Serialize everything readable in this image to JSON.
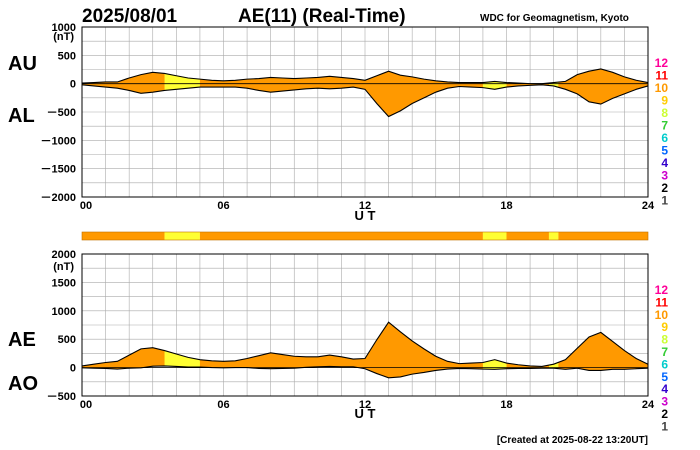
{
  "header": {
    "date": "2025/08/01",
    "title": "AE(11) (Real-Time)",
    "source": "WDC for Geomagnetism, Kyoto"
  },
  "footer": {
    "created": "[Created at 2025-08-22 13:20UT]"
  },
  "colors": {
    "fill_orange": "#ff9900",
    "fill_yellow": "#ffff33",
    "grid": "#aaaaaa",
    "line": "#000000",
    "scale": [
      "#999999",
      "#444444",
      "#000000",
      "#cc00cc",
      "#3300cc",
      "#0066ff",
      "#00cccc",
      "#33cc33",
      "#ccff33",
      "#ffcc00",
      "#ff9900",
      "#ff0000",
      "#ff0099"
    ]
  },
  "stations_scale": [
    "12",
    "11",
    "10",
    "9",
    "8",
    "7",
    "6",
    "5",
    "4",
    "3",
    "2",
    "1"
  ],
  "chart_data": [
    {
      "type": "area",
      "panel": "AU/AL",
      "series_labels": [
        "AU",
        "AL"
      ],
      "y_unit": "(nT)",
      "ylim": [
        -2000,
        1000
      ],
      "yticks": [
        1000,
        500,
        0,
        -500,
        -1000,
        -1500,
        -2000
      ],
      "ytick_labels": [
        "1000",
        "500",
        "0",
        "－500",
        "－1000",
        "－1500",
        "－2000"
      ],
      "xlim": [
        0,
        24
      ],
      "xticks": [
        0,
        6,
        12,
        18,
        24
      ],
      "xtick_labels": [
        "00",
        "06",
        "12",
        "18",
        "24"
      ],
      "xlabel": "U T",
      "x_hours": [
        0,
        0.5,
        1,
        1.5,
        2,
        2.5,
        3,
        3.5,
        4,
        4.5,
        5,
        5.5,
        6,
        6.5,
        7,
        7.5,
        8,
        8.5,
        9,
        9.5,
        10,
        10.5,
        11,
        11.5,
        12,
        12.5,
        13,
        13.5,
        14,
        14.5,
        15,
        15.5,
        16,
        16.5,
        17,
        17.5,
        18,
        18.5,
        19,
        19.5,
        20,
        20.5,
        21,
        21.5,
        22,
        22.5,
        23,
        23.5,
        24
      ],
      "series": [
        {
          "name": "AU",
          "values": [
            10,
            20,
            30,
            30,
            100,
            160,
            200,
            180,
            140,
            100,
            80,
            60,
            50,
            60,
            80,
            90,
            110,
            100,
            90,
            100,
            110,
            130,
            110,
            90,
            60,
            140,
            220,
            150,
            120,
            80,
            50,
            30,
            20,
            20,
            20,
            40,
            20,
            10,
            0,
            0,
            20,
            40,
            160,
            220,
            260,
            200,
            120,
            60,
            20
          ]
        },
        {
          "name": "AL",
          "values": [
            -20,
            -40,
            -60,
            -80,
            -120,
            -170,
            -150,
            -120,
            -100,
            -80,
            -60,
            -60,
            -60,
            -60,
            -80,
            -120,
            -150,
            -130,
            -110,
            -90,
            -80,
            -90,
            -80,
            -60,
            -100,
            -350,
            -580,
            -480,
            -350,
            -250,
            -150,
            -80,
            -50,
            -60,
            -70,
            -100,
            -60,
            -40,
            -30,
            -20,
            -40,
            -100,
            -180,
            -320,
            -360,
            -260,
            -180,
            -100,
            -40
          ]
        }
      ]
    },
    {
      "type": "area",
      "panel": "AE/AO",
      "series_labels": [
        "AE",
        "AO"
      ],
      "y_unit": "(nT)",
      "ylim": [
        -500,
        2000
      ],
      "yticks": [
        2000,
        1500,
        1000,
        500,
        0,
        -500
      ],
      "ytick_labels": [
        "2000",
        "1500",
        "1000",
        "500",
        "0",
        "－500"
      ],
      "xlim": [
        0,
        24
      ],
      "xticks": [
        0,
        6,
        12,
        18,
        24
      ],
      "xtick_labels": [
        "00",
        "06",
        "12",
        "18",
        "24"
      ],
      "xlabel": "U T",
      "x_hours": [
        0,
        0.5,
        1,
        1.5,
        2,
        2.5,
        3,
        3.5,
        4,
        4.5,
        5,
        5.5,
        6,
        6.5,
        7,
        7.5,
        8,
        8.5,
        9,
        9.5,
        10,
        10.5,
        11,
        11.5,
        12,
        12.5,
        13,
        13.5,
        14,
        14.5,
        15,
        15.5,
        16,
        16.5,
        17,
        17.5,
        18,
        18.5,
        19,
        19.5,
        20,
        20.5,
        21,
        21.5,
        22,
        22.5,
        23,
        23.5,
        24
      ],
      "series": [
        {
          "name": "AE",
          "values": [
            30,
            60,
            90,
            110,
            220,
            330,
            350,
            300,
            240,
            180,
            140,
            120,
            110,
            120,
            160,
            210,
            260,
            230,
            200,
            190,
            190,
            220,
            190,
            150,
            160,
            490,
            800,
            630,
            470,
            330,
            200,
            110,
            70,
            80,
            90,
            140,
            80,
            50,
            30,
            20,
            60,
            140,
            340,
            540,
            620,
            460,
            300,
            160,
            60
          ]
        },
        {
          "name": "AO",
          "values": [
            -5,
            -10,
            -15,
            -25,
            -10,
            -5,
            25,
            30,
            20,
            10,
            10,
            0,
            -5,
            0,
            0,
            -15,
            -20,
            -15,
            -10,
            5,
            15,
            20,
            15,
            15,
            -20,
            -105,
            -180,
            -165,
            -115,
            -85,
            -50,
            -25,
            -15,
            -20,
            -25,
            -30,
            -20,
            -15,
            -15,
            -10,
            -10,
            -30,
            -10,
            -50,
            -50,
            -30,
            -30,
            -20,
            -10
          ]
        }
      ]
    }
  ],
  "activity_bar": {
    "segments": [
      {
        "from": 0,
        "to": 3.5,
        "level": "10"
      },
      {
        "from": 3.5,
        "to": 5,
        "level": "9"
      },
      {
        "from": 5,
        "to": 17,
        "level": "10"
      },
      {
        "from": 17,
        "to": 18,
        "level": "9"
      },
      {
        "from": 18,
        "to": 19.8,
        "level": "10"
      },
      {
        "from": 19.8,
        "to": 20.2,
        "level": "9"
      },
      {
        "from": 20.2,
        "to": 24,
        "level": "10"
      }
    ]
  },
  "level_colors": {
    "9": "#ffff33",
    "10": "#ff9900"
  }
}
